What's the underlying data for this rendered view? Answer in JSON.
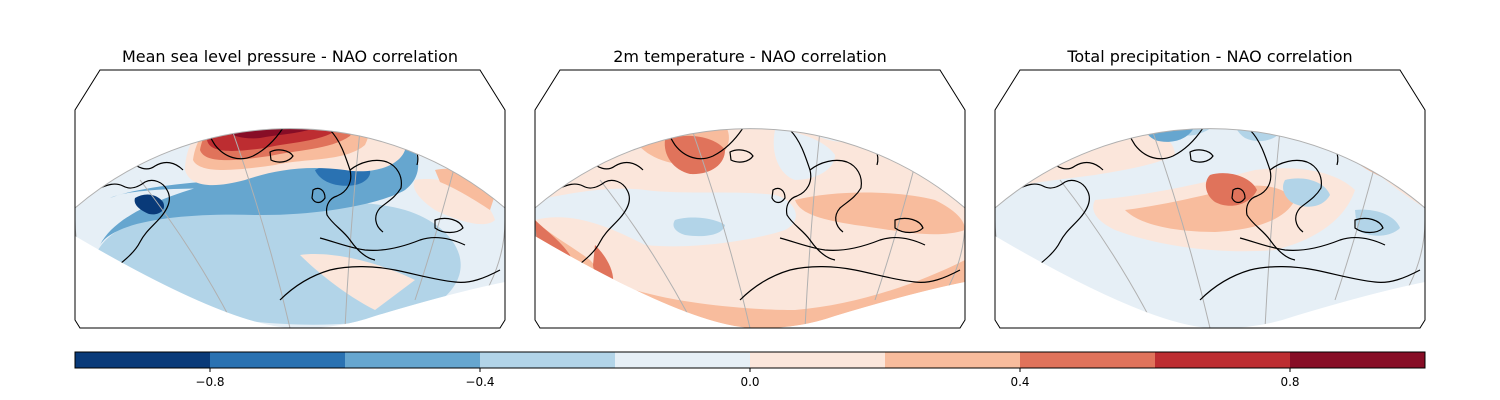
{
  "figure": {
    "panels": [
      {
        "title": "Mean sea level pressure - NAO correlation",
        "field": "msl"
      },
      {
        "title": "2m temperature - NAO correlation",
        "field": "t2m"
      },
      {
        "title": "Total precipitation - NAO correlation",
        "field": "tp"
      }
    ]
  },
  "colorbar": {
    "bounds": [
      -1.0,
      -0.8,
      -0.6,
      -0.4,
      -0.2,
      0.0,
      0.2,
      0.4,
      0.6,
      0.8,
      1.0
    ],
    "colors": [
      "#093a79",
      "#2a72b2",
      "#66a6cf",
      "#b2d4e8",
      "#e6eff6",
      "#fbe6db",
      "#f8bc9d",
      "#e0735b",
      "#bd2d31",
      "#870d26"
    ],
    "tick_values": [
      -0.8,
      -0.4,
      0.0,
      0.4,
      0.8
    ],
    "tick_labels": [
      "−0.8",
      "−0.4",
      "0.0",
      "0.4",
      "0.8"
    ]
  },
  "styles": {
    "gridline_color": "#b0b0b0",
    "coastline_color": "#000000",
    "frame_color": "#000000"
  }
}
